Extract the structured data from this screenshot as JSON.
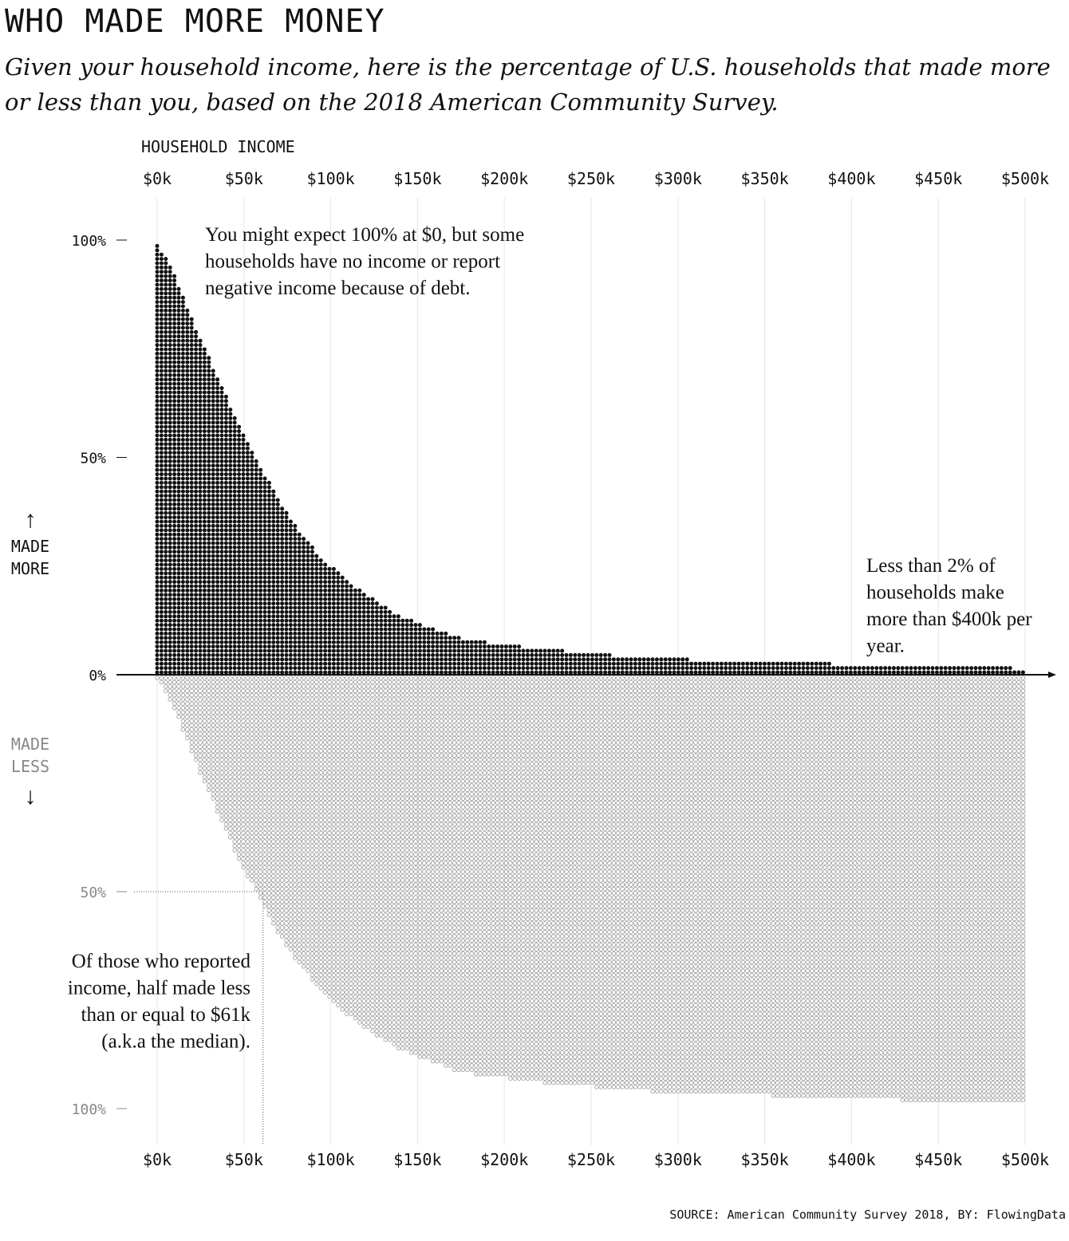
{
  "title": "WHO MADE MORE MONEY",
  "subtitle": "Given your household income, here is the percentage of U.S. households that made more or less than you, based on the 2018 American Community Survey.",
  "source": "SOURCE: American Community Survey 2018, BY: FlowingData",
  "chart_data": {
    "type": "scatter",
    "xlabel": "HOUSEHOLD INCOME",
    "x_ticks": [
      "$0k",
      "$50k",
      "$100k",
      "$150k",
      "$200k",
      "$250k",
      "$300k",
      "$350k",
      "$400k",
      "$450k",
      "$500k"
    ],
    "x_tick_values": [
      0,
      50,
      100,
      150,
      200,
      250,
      300,
      350,
      400,
      450,
      500
    ],
    "xlim": [
      0,
      500
    ],
    "top_y_ticks": [
      "100%",
      "50%",
      "0%"
    ],
    "top_y_tick_values": [
      100,
      50,
      0
    ],
    "bottom_y_ticks": [
      "50%",
      "100%"
    ],
    "bottom_y_tick_values": [
      50,
      100
    ],
    "ylim": [
      0,
      100
    ],
    "top_axis_label": [
      "MADE",
      "MORE"
    ],
    "bottom_axis_label": [
      "MADE",
      "LESS"
    ],
    "colors": {
      "more": "#111111",
      "less": "#888888",
      "grid": "#e6e6e6"
    },
    "grid": true,
    "series": [
      {
        "name": "MADE MORE",
        "x": [
          0,
          5,
          10,
          15,
          20,
          25,
          30,
          35,
          40,
          45,
          50,
          55,
          60,
          65,
          70,
          75,
          80,
          85,
          90,
          95,
          100,
          110,
          120,
          130,
          140,
          150,
          160,
          170,
          180,
          200,
          220,
          250,
          270,
          300,
          320,
          350,
          380,
          400,
          450,
          500
        ],
        "values": [
          99,
          96,
          92,
          87,
          82,
          77,
          73,
          68,
          64,
          59,
          55,
          51,
          47,
          44,
          40,
          37,
          34,
          32,
          29,
          27,
          25,
          21.5,
          18.5,
          16,
          13.5,
          12,
          10.5,
          9,
          8,
          7,
          6,
          5,
          4.2,
          3.7,
          3.2,
          3,
          2.8,
          2.2,
          1.8,
          1.5
        ]
      },
      {
        "name": "MADE LESS",
        "x": [
          0,
          5,
          10,
          15,
          20,
          25,
          30,
          35,
          40,
          45,
          50,
          55,
          60,
          61,
          65,
          70,
          75,
          80,
          85,
          90,
          95,
          100,
          110,
          120,
          130,
          140,
          150,
          160,
          170,
          180,
          200,
          220,
          250,
          270,
          300,
          320,
          350,
          380,
          400,
          450,
          500
        ],
        "values": [
          1,
          4,
          8,
          13,
          18,
          23,
          27,
          32,
          36,
          41,
          45,
          48.5,
          52,
          52.5,
          56,
          60,
          63,
          66,
          68,
          71,
          73,
          75,
          78.5,
          81.5,
          84,
          86.5,
          88,
          89.5,
          91,
          92,
          93,
          94,
          95,
          95.8,
          96.3,
          96.8,
          97,
          97.2,
          97.8,
          98.2,
          98.5
        ]
      }
    ],
    "annotations": [
      {
        "text": [
          "You might expect 100% at $0, but some",
          "households have no income or report",
          "negative income because of debt."
        ]
      },
      {
        "text": [
          "Less than 2% of",
          "households make",
          "more than $400k per",
          "year."
        ]
      },
      {
        "text": [
          "Of those who reported",
          "income, half made less",
          "than or equal to $61k",
          "(a.k.a the median)."
        ],
        "x": 61,
        "y": 50
      }
    ],
    "arrows": {
      "up": "↑",
      "down": "↓"
    }
  }
}
